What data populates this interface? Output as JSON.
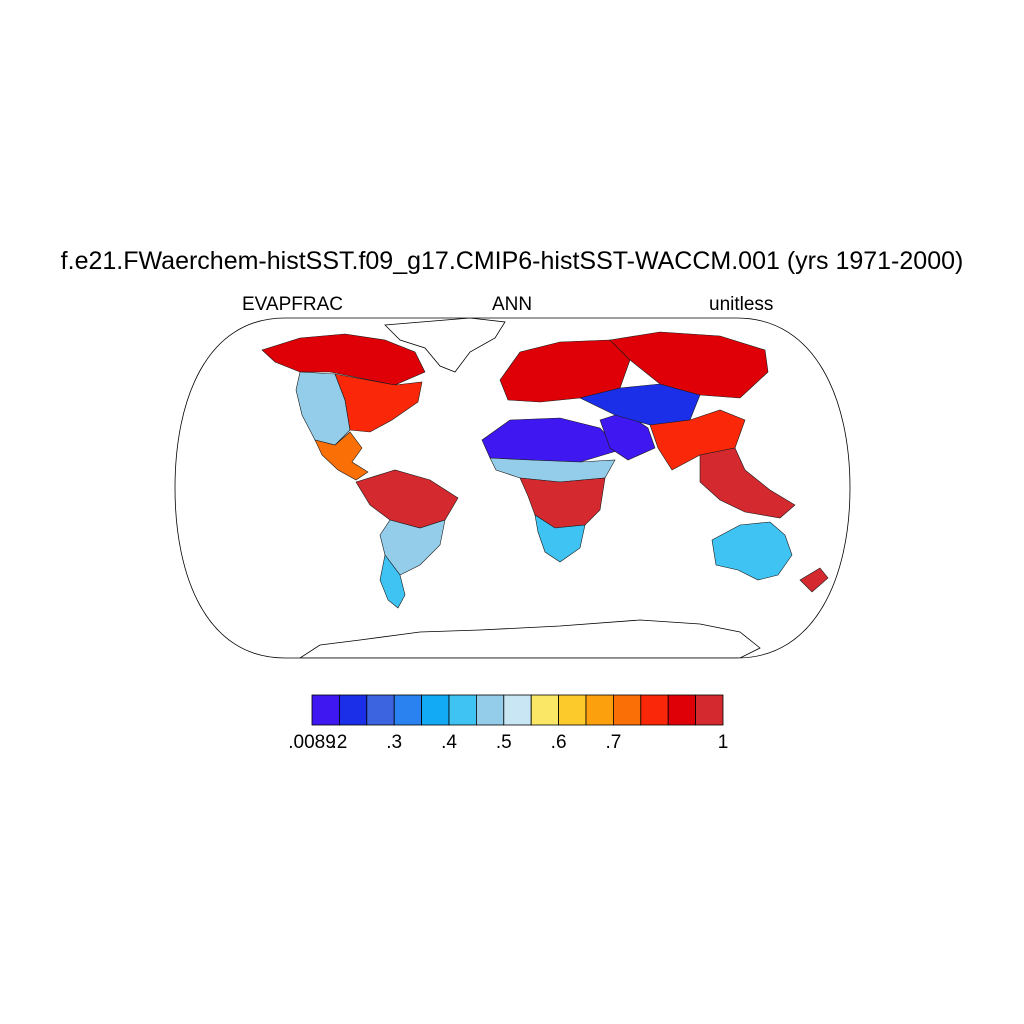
{
  "title": "f.e21.FWaerchem-histSST.f09_g17.CMIP6-histSST-WACCM.001 (yrs 1971-2000)",
  "left_label": "EVAPFRAC",
  "center_label": "ANN",
  "right_label": "unitless",
  "colorbar": {
    "colors": [
      "#3f17f0",
      "#1b2ee8",
      "#3d64e0",
      "#2a82f0",
      "#12aaf5",
      "#3ec3f2",
      "#94cdea",
      "#c9e6f4",
      "#fbe766",
      "#fdca2c",
      "#fca00e",
      "#fb7006",
      "#fa2708",
      "#de0006",
      "#d42a2f"
    ],
    "labels": [
      ".0089",
      ".2",
      ".3",
      ".4",
      ".5",
      ".6",
      ".7",
      "1"
    ],
    "label_boundaries": [
      0,
      1,
      3,
      5,
      7,
      9,
      11,
      15
    ]
  },
  "regions": [
    {
      "name": "north-america-arctic",
      "value": 0.85
    },
    {
      "name": "north-america-west",
      "value": 0.4
    },
    {
      "name": "north-america-east",
      "value": 0.75
    },
    {
      "name": "central-america",
      "value": 0.65
    },
    {
      "name": "amazon",
      "value": 0.95
    },
    {
      "name": "south-america-east",
      "value": 0.4
    },
    {
      "name": "patagonia",
      "value": 0.35
    },
    {
      "name": "europe",
      "value": 0.85
    },
    {
      "name": "sahara",
      "value": 0.05
    },
    {
      "name": "sahel",
      "value": 0.4
    },
    {
      "name": "central-africa",
      "value": 0.95
    },
    {
      "name": "southern-africa",
      "value": 0.35
    },
    {
      "name": "arabia",
      "value": 0.1
    },
    {
      "name": "central-asia",
      "value": 0.15
    },
    {
      "name": "siberia",
      "value": 0.8
    },
    {
      "name": "south-asia",
      "value": 0.75
    },
    {
      "name": "southeast-asia",
      "value": 0.98
    },
    {
      "name": "australia",
      "value": 0.35
    },
    {
      "name": "new-zealand",
      "value": 0.9
    }
  ]
}
